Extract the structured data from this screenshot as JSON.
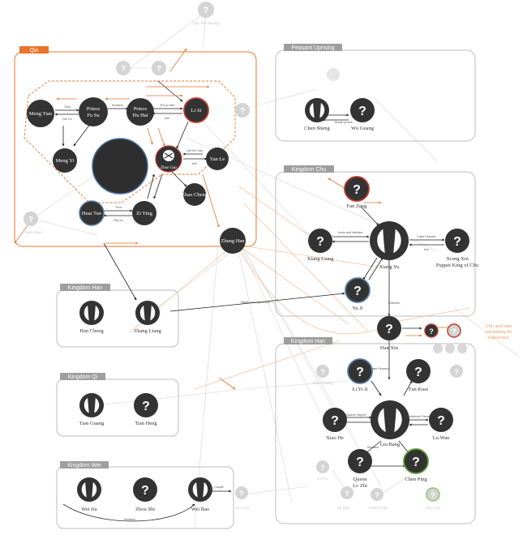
{
  "colors": {
    "node_dark": "#333333",
    "node_faint": "#d0d0d0",
    "qin_border": "#e8732a",
    "group_border": "#bdbdbd",
    "group_title_bg": "#9e9e9e",
    "red_ring": "#c0392b",
    "blue_ring": "#5b7fa6",
    "green_ring": "#5aa02c",
    "arrow_dark": "#222222",
    "arrow_orange": "#e8732a",
    "arrow_faint": "#dddddd"
  },
  "groups": {
    "qin": "Qin",
    "peasant": "Peasant Uprising",
    "chu": "Kingdom Chu",
    "han_kingdom": "Kingdom Han",
    "qi": "Kingdom Qi",
    "wei": "Kingdom Wei",
    "han_dynasty": "Kingdom Han"
  },
  "nodes": {
    "meng_tian": "Meng Tian",
    "prince_fusu": "Prince Fu Su",
    "prince_huhai": "Prince Hu Hai",
    "li_si": "Li Si",
    "meng_yi": "Meng Yi",
    "zhao_gao": "Zhao Gao",
    "yan_le": "Yan Le",
    "zhao_cheng": "Zhao Cheng",
    "huai_tuo": "Huai Tuo",
    "zi_ying": "Zi Ying",
    "chen_sheng": "Chen Sheng",
    "wu_guang": "Wu Guang",
    "fan_zeng": "Fan Zeng",
    "xiang_liang": "Xiang Liang",
    "xiang_yu": "Xiang Yu",
    "xiong_xin": "Xiong Xin Puppet King of Chu",
    "yu_ji": "Yu Ji",
    "zhang_han": "Zhang Han",
    "han_cheng": "Han Cheng",
    "zhang_liang": "Zhang Liang",
    "tian_guang": "Tian Guang",
    "tian_heng": "Tian Heng",
    "wei_jiu": "Wei Jiu",
    "zhou_shi": "Zhou Shi",
    "wei_bao": "Wei Bao",
    "han_xin": "Han Xin",
    "li_yiji": "Li Yi Ji",
    "fan_kuai": "Fan Kuai",
    "xiao_he": "Xiao He",
    "liu_bang": "Liu Bang",
    "lu_wan": "Lu Wan",
    "queen_lv_zhi": "Queen Lv Zhi",
    "chen_ping": "Chen Ping"
  },
  "edges": {
    "meng_fusu": "Trust",
    "meng_fusu2": "Dis-Tru",
    "fusu_huhai": "Brothers",
    "huhai_lisi": "Tell up with",
    "huhai_lisi2": "Use",
    "lisi_zhaogao": "Join the Gao",
    "lisi_zhaogao2": "Use",
    "huai_ziying": "Trust",
    "huai_ziying2": "Pity-Su",
    "peasant_break": "Break up with",
    "xiangliang_yu": "Uncle and Nephew",
    "xiangyu_xin": "False Respect",
    "xiangyu_xin2": "Use",
    "fanzeng_yu": "Ad-visor",
    "zhangliang_master": "Master and Apprentice",
    "liu_hanxin": "False Respect",
    "liu_xiaohe": "Quarter Inspect",
    "liu_luwan": "Childhood Friend",
    "liu_lvzhi": "Husband",
    "weibao_couple": "Couple",
    "weijiu_weibao": "Brothers",
    "enemies": "Enemies"
  },
  "side_note": "Chu and Han competing for supremacy",
  "faint_nodes": [
    "Qin Shi Huang",
    "Chun Qiao",
    "Han Guang",
    "Lv Fu",
    "Qi Bao",
    "Guan Ying",
    "Xia Hou",
    "Lu Gen"
  ]
}
